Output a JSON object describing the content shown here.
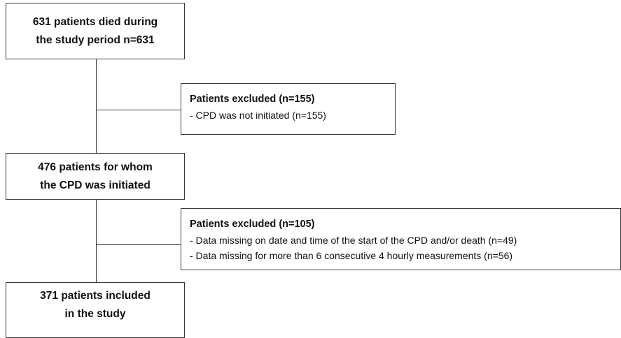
{
  "flowchart": {
    "step1": {
      "line1": "631 patients died during",
      "line2": "the study period n=631"
    },
    "exclusion1": {
      "title": "Patients excluded (n=155)",
      "items": [
        "- CPD was not initiated (n=155)"
      ]
    },
    "step2": {
      "line1": "476 patients for whom",
      "line2": "the CPD was initiated"
    },
    "exclusion2": {
      "title": "Patients excluded (n=105)",
      "items": [
        "- Data missing on date and time of the start of the CPD and/or death (n=49)",
        "- Data missing for more than 6 consecutive 4 hourly measurements (n=56)"
      ]
    },
    "step3": {
      "line1": "371 patients included",
      "line2": "in the study"
    }
  }
}
